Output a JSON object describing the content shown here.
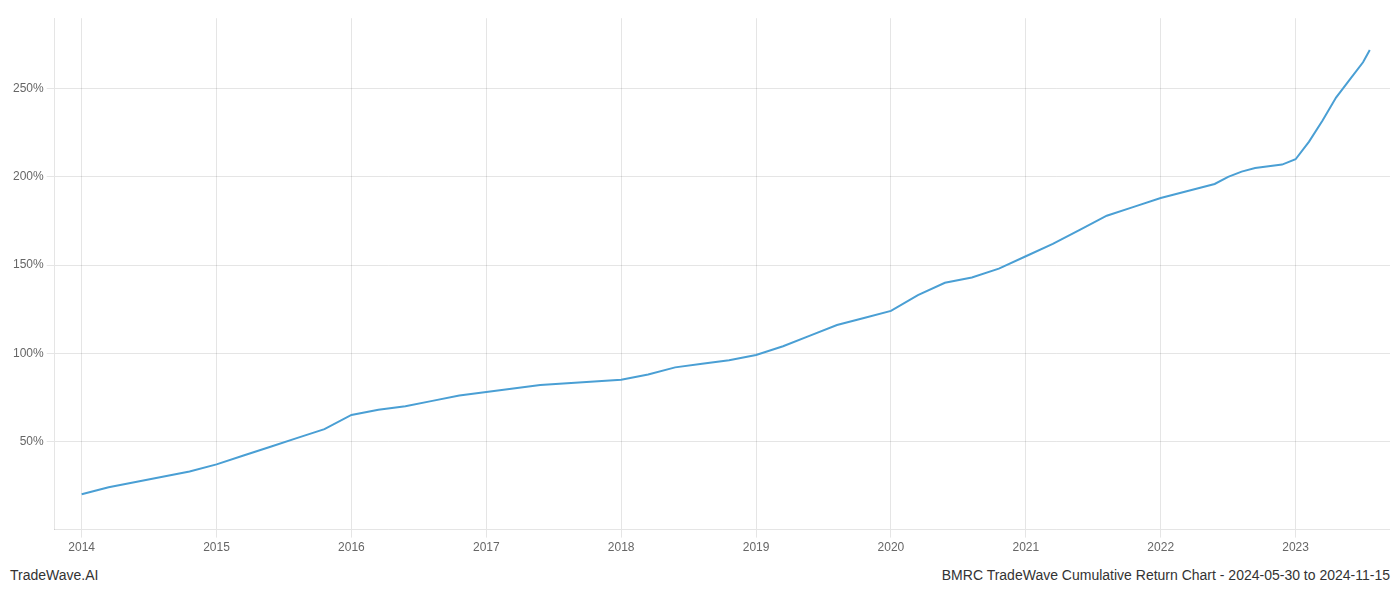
{
  "chart_data": {
    "type": "line",
    "x": [
      2014.0,
      2014.1,
      2014.2,
      2014.4,
      2014.6,
      2014.8,
      2015.0,
      2015.2,
      2015.4,
      2015.6,
      2015.8,
      2016.0,
      2016.2,
      2016.4,
      2016.6,
      2016.8,
      2017.0,
      2017.2,
      2017.4,
      2017.6,
      2017.8,
      2018.0,
      2018.2,
      2018.4,
      2018.6,
      2018.8,
      2019.0,
      2019.2,
      2019.4,
      2019.6,
      2019.8,
      2020.0,
      2020.2,
      2020.4,
      2020.6,
      2020.8,
      2021.0,
      2021.2,
      2021.4,
      2021.6,
      2021.8,
      2022.0,
      2022.2,
      2022.4,
      2022.5,
      2022.6,
      2022.7,
      2022.8,
      2022.9,
      2023.0,
      2023.1,
      2023.2,
      2023.3,
      2023.4,
      2023.5,
      2023.55
    ],
    "values": [
      20,
      22,
      24,
      27,
      30,
      33,
      37,
      42,
      47,
      52,
      57,
      65,
      68,
      70,
      73,
      76,
      78,
      80,
      82,
      83,
      84,
      85,
      88,
      92,
      94,
      96,
      99,
      104,
      110,
      116,
      120,
      124,
      133,
      140,
      143,
      148,
      155,
      162,
      170,
      178,
      183,
      188,
      192,
      196,
      200,
      203,
      205,
      206,
      207,
      210,
      220,
      232,
      245,
      255,
      265,
      272
    ],
    "color": "#4a9fd4",
    "xlim": [
      2013.8,
      2023.7
    ],
    "xticks": [
      2014,
      2015,
      2016,
      2017,
      2018,
      2019,
      2020,
      2021,
      2022,
      2023
    ],
    "ylim": [
      0,
      290
    ],
    "yticks": [
      {
        "value": 50,
        "label": "50%"
      },
      {
        "value": 100,
        "label": "100%"
      },
      {
        "value": 150,
        "label": "150%"
      },
      {
        "value": 200,
        "label": "200%"
      },
      {
        "value": 250,
        "label": "250%"
      }
    ],
    "grid": true,
    "annotations": [
      "TradeWave.AI",
      "BMRC TradeWave Cumulative Return Chart - 2024-05-30 to 2024-11-15"
    ]
  }
}
